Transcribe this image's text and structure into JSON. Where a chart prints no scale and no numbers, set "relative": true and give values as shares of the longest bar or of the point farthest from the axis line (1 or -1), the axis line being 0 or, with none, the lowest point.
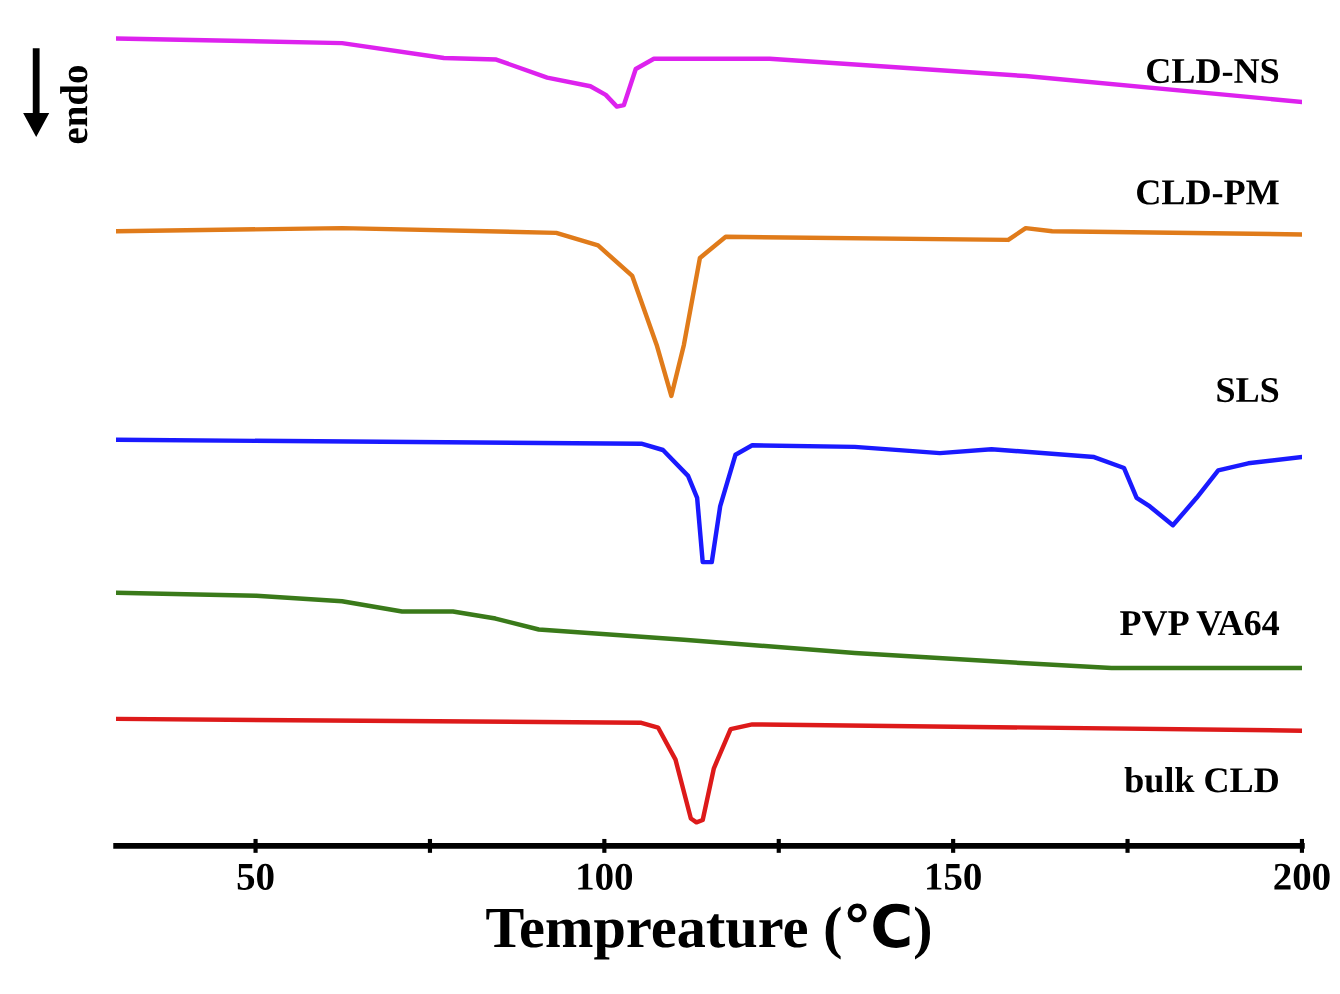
{
  "chart_data": {
    "type": "line",
    "relative": true,
    "xlabel": "Tempreature (℃)",
    "ylabel": "endo",
    "xlim": [
      30,
      200
    ],
    "xticks": [
      50,
      {
        "value": 75,
        "label": null
      },
      100,
      {
        "value": 125,
        "label": null
      },
      150,
      {
        "value": 175,
        "label": null
      },
      200
    ],
    "tick_labels": "x",
    "grid": false,
    "legend": false,
    "series": [
      {
        "name": "CLD-NS",
        "color": "#dd22ee",
        "x": [
          30,
          62.4,
          77.0,
          84.5,
          91.8,
          98.0,
          100.2,
          101.8,
          102.8,
          104.5,
          107.1,
          123.7,
          160.4,
          200
        ],
        "values": [
          1.0,
          0.994,
          0.975,
          0.973,
          0.95,
          0.939,
          0.928,
          0.913,
          0.915,
          0.961,
          0.974,
          0.974,
          0.952,
          0.919
        ]
      },
      {
        "name": "CLD-PM",
        "color": "#e07b1a",
        "x": [
          30,
          62.4,
          93.1,
          99.1,
          104.0,
          107.5,
          109.6,
          111.4,
          113.7,
          117.4,
          157.9,
          160.4,
          164.2,
          200
        ],
        "values": [
          0.754,
          0.758,
          0.752,
          0.736,
          0.697,
          0.609,
          0.544,
          0.609,
          0.72,
          0.747,
          0.743,
          0.758,
          0.754,
          0.75
        ]
      },
      {
        "name": "SLS",
        "color": "#1a1aff",
        "x": [
          30,
          105.3,
          108.4,
          112.0,
          113.3,
          114.1,
          115.4,
          116.6,
          118.8,
          121.2,
          135.9,
          148.1,
          155.5,
          170.2,
          174.5,
          176.3,
          178.2,
          181.5,
          184.9,
          188.0,
          192.3,
          200
        ],
        "values": [
          0.488,
          0.483,
          0.475,
          0.442,
          0.414,
          0.332,
          0.332,
          0.403,
          0.469,
          0.481,
          0.479,
          0.471,
          0.476,
          0.466,
          0.452,
          0.414,
          0.403,
          0.379,
          0.414,
          0.449,
          0.458,
          0.466
        ]
      },
      {
        "name": "PVP VA64",
        "color": "#3a7a1a",
        "x": [
          30,
          50.1,
          62.4,
          71.0,
          78.3,
          84.4,
          90.6,
          111.4,
          135.9,
          160.4,
          172.7,
          200
        ],
        "values": [
          0.293,
          0.289,
          0.282,
          0.269,
          0.269,
          0.26,
          0.246,
          0.233,
          0.216,
          0.203,
          0.197,
          0.197
        ]
      },
      {
        "name": "bulk CLD",
        "color": "#dd1a1a",
        "x": [
          30,
          105.3,
          107.7,
          110.2,
          112.4,
          113.2,
          114.1,
          115.7,
          118.1,
          121.2,
          200
        ],
        "values": [
          0.132,
          0.127,
          0.121,
          0.08,
          0.005,
          0,
          0.003,
          0.069,
          0.119,
          0.125,
          0.117
        ]
      }
    ]
  }
}
